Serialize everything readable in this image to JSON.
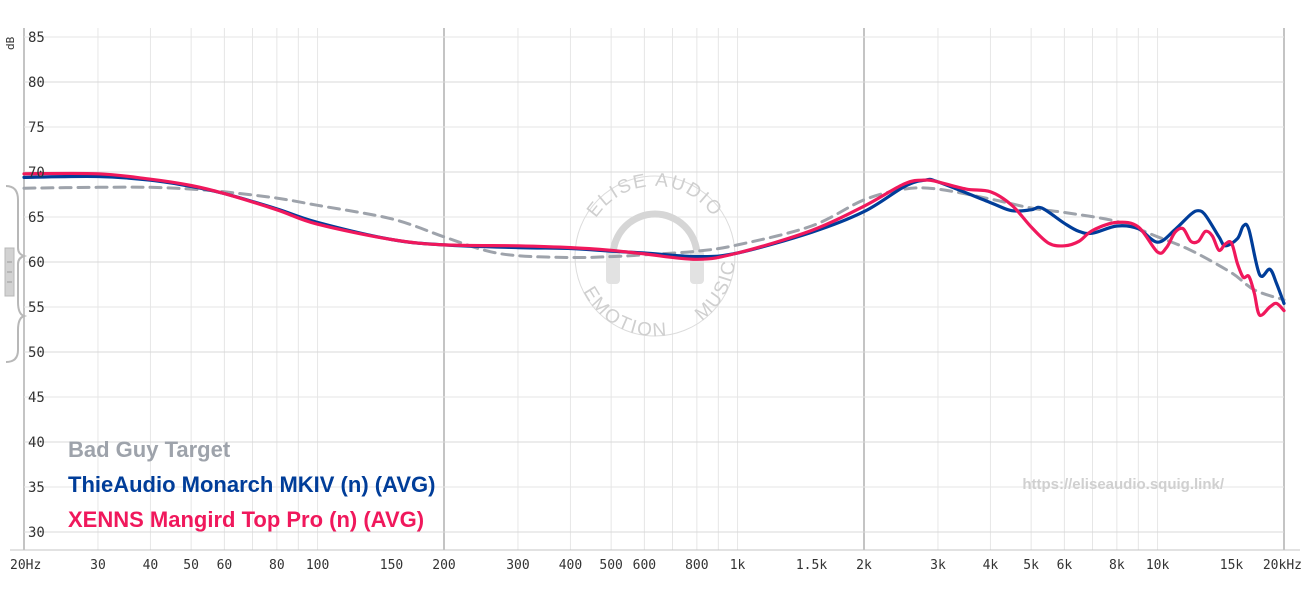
{
  "chart_data": {
    "type": "line",
    "xscale": "log",
    "xlim": [
      20,
      20000
    ],
    "ylim": [
      28,
      86
    ],
    "ylabel": "dB",
    "yticks": [
      85,
      80,
      75,
      70,
      65,
      60,
      55,
      50,
      45,
      40,
      35,
      30
    ],
    "xticks": [
      {
        "v": 20,
        "label": "20Hz"
      },
      {
        "v": 30,
        "label": "30"
      },
      {
        "v": 40,
        "label": "40"
      },
      {
        "v": 50,
        "label": "50"
      },
      {
        "v": 60,
        "label": "60"
      },
      {
        "v": 80,
        "label": "80"
      },
      {
        "v": 100,
        "label": "100"
      },
      {
        "v": 150,
        "label": "150"
      },
      {
        "v": 200,
        "label": "200"
      },
      {
        "v": 300,
        "label": "300"
      },
      {
        "v": 400,
        "label": "400"
      },
      {
        "v": 500,
        "label": "500"
      },
      {
        "v": 600,
        "label": "600"
      },
      {
        "v": 800,
        "label": "800"
      },
      {
        "v": 1000,
        "label": "1k"
      },
      {
        "v": 1500,
        "label": "1.5k"
      },
      {
        "v": 2000,
        "label": "2k"
      },
      {
        "v": 3000,
        "label": "3k"
      },
      {
        "v": 4000,
        "label": "4k"
      },
      {
        "v": 5000,
        "label": "5k"
      },
      {
        "v": 6000,
        "label": "6k"
      },
      {
        "v": 8000,
        "label": "8k"
      },
      {
        "v": 10000,
        "label": "10k"
      },
      {
        "v": 15000,
        "label": "15k"
      },
      {
        "v": 20000,
        "label": "20kHz"
      }
    ],
    "grid": true,
    "series": [
      {
        "name": "Bad Guy Target",
        "color": "#9ea3ab",
        "dashed": true,
        "points": [
          [
            20,
            68.2
          ],
          [
            30,
            68.3
          ],
          [
            40,
            68.3
          ],
          [
            50,
            68.1
          ],
          [
            60,
            67.8
          ],
          [
            80,
            67.1
          ],
          [
            100,
            66.3
          ],
          [
            150,
            64.8
          ],
          [
            200,
            62.8
          ],
          [
            250,
            61.3
          ],
          [
            300,
            60.7
          ],
          [
            400,
            60.5
          ],
          [
            500,
            60.6
          ],
          [
            600,
            60.8
          ],
          [
            800,
            61.2
          ],
          [
            1000,
            61.9
          ],
          [
            1500,
            64.0
          ],
          [
            2000,
            66.9
          ],
          [
            2500,
            68.1
          ],
          [
            3000,
            68.1
          ],
          [
            4000,
            67.0
          ],
          [
            5000,
            66.0
          ],
          [
            6000,
            65.5
          ],
          [
            8000,
            64.5
          ],
          [
            10000,
            62.8
          ],
          [
            12000,
            61.3
          ],
          [
            15000,
            58.8
          ],
          [
            17000,
            56.9
          ],
          [
            20000,
            55.8
          ]
        ]
      },
      {
        "name": "ThieAudio Monarch MKIV (n) (AVG)",
        "color": "#003d99",
        "dashed": false,
        "points": [
          [
            20,
            69.4
          ],
          [
            30,
            69.5
          ],
          [
            40,
            69.1
          ],
          [
            50,
            68.4
          ],
          [
            60,
            67.6
          ],
          [
            80,
            65.9
          ],
          [
            100,
            64.4
          ],
          [
            150,
            62.5
          ],
          [
            200,
            61.9
          ],
          [
            300,
            61.6
          ],
          [
            400,
            61.5
          ],
          [
            500,
            61.2
          ],
          [
            600,
            61.0
          ],
          [
            800,
            60.6
          ],
          [
            1000,
            61.0
          ],
          [
            1500,
            63.3
          ],
          [
            2000,
            65.6
          ],
          [
            2500,
            68.4
          ],
          [
            2800,
            69.1
          ],
          [
            3000,
            68.9
          ],
          [
            4000,
            66.6
          ],
          [
            4500,
            65.7
          ],
          [
            5000,
            65.8
          ],
          [
            5300,
            66.0
          ],
          [
            6000,
            64.3
          ],
          [
            6500,
            63.4
          ],
          [
            7000,
            63.2
          ],
          [
            8000,
            64.0
          ],
          [
            9000,
            63.7
          ],
          [
            10000,
            62.2
          ],
          [
            11000,
            63.6
          ],
          [
            12000,
            65.3
          ],
          [
            12500,
            65.7
          ],
          [
            13000,
            65.2
          ],
          [
            14000,
            62.8
          ],
          [
            14500,
            61.8
          ],
          [
            15500,
            62.6
          ],
          [
            16000,
            64.0
          ],
          [
            16500,
            63.6
          ],
          [
            17500,
            58.6
          ],
          [
            18500,
            59.2
          ],
          [
            19200,
            57.6
          ],
          [
            20000,
            55.4
          ]
        ]
      },
      {
        "name": "XENNS Mangird Top Pro (n) (AVG)",
        "color": "#f0185c",
        "dashed": false,
        "points": [
          [
            20,
            69.8
          ],
          [
            30,
            69.8
          ],
          [
            40,
            69.2
          ],
          [
            50,
            68.5
          ],
          [
            60,
            67.6
          ],
          [
            80,
            65.8
          ],
          [
            100,
            64.2
          ],
          [
            150,
            62.5
          ],
          [
            200,
            61.9
          ],
          [
            300,
            61.8
          ],
          [
            400,
            61.6
          ],
          [
            500,
            61.3
          ],
          [
            600,
            60.9
          ],
          [
            800,
            60.3
          ],
          [
            1000,
            61.0
          ],
          [
            1500,
            63.5
          ],
          [
            2000,
            66.2
          ],
          [
            2500,
            68.7
          ],
          [
            2800,
            69.1
          ],
          [
            3000,
            68.9
          ],
          [
            3500,
            68.1
          ],
          [
            4000,
            67.8
          ],
          [
            4500,
            66.3
          ],
          [
            5000,
            63.9
          ],
          [
            5500,
            62.1
          ],
          [
            6000,
            61.8
          ],
          [
            6500,
            62.3
          ],
          [
            7000,
            63.5
          ],
          [
            8000,
            64.4
          ],
          [
            9000,
            63.9
          ],
          [
            10000,
            61.1
          ],
          [
            10500,
            61.6
          ],
          [
            11000,
            63.3
          ],
          [
            11500,
            63.7
          ],
          [
            12000,
            62.3
          ],
          [
            12500,
            62.3
          ],
          [
            13000,
            63.4
          ],
          [
            13500,
            62.9
          ],
          [
            14000,
            61.3
          ],
          [
            14500,
            62.0
          ],
          [
            15000,
            62.1
          ],
          [
            15500,
            59.8
          ],
          [
            16000,
            58.3
          ],
          [
            16500,
            58.4
          ],
          [
            17000,
            56.5
          ],
          [
            17500,
            54.1
          ],
          [
            18500,
            55.0
          ],
          [
            19200,
            55.4
          ],
          [
            20000,
            54.6
          ]
        ]
      }
    ]
  },
  "legend": {
    "target": "Bad Guy Target",
    "iem1": "ThieAudio Monarch MKIV (n) (AVG)",
    "iem2": "XENNS Mangird Top Pro (n) (AVG)"
  },
  "watermark": {
    "url": "https://eliseaudio.squig.link/",
    "top_text": "ELISE AUDIO",
    "right_text": "MUSIC",
    "bottom_text": "EMOTION"
  },
  "colors": {
    "grid_major": "#c4c4c4",
    "grid_minor": "#e6e6e6",
    "handle": "#b8b8b8"
  }
}
